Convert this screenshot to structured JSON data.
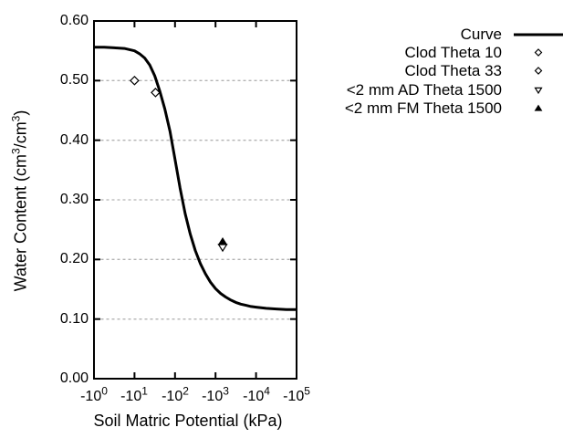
{
  "chart_data": {
    "type": "line",
    "title": "",
    "background_color": "#ffffff",
    "colors": {
      "line": "#000000",
      "grid": "#b3b3b3",
      "text": "#000000"
    },
    "x_axis": {
      "label": "Soil Matric Potential (kPa)",
      "scale": "log10 of negative kPa",
      "range_decades": [
        0,
        5
      ],
      "ticks": [
        {
          "base": "-10",
          "exp": "0"
        },
        {
          "base": "-10",
          "exp": "1"
        },
        {
          "base": "-10",
          "exp": "2"
        },
        {
          "base": "-10",
          "exp": "3"
        },
        {
          "base": "-10",
          "exp": "4"
        },
        {
          "base": "-10",
          "exp": "5"
        }
      ]
    },
    "y_axis": {
      "label_parts": [
        "Water Content (cm",
        "3",
        "/cm",
        "3",
        ")"
      ],
      "range": [
        0.0,
        0.6
      ],
      "ticks": [
        "0.60",
        "0.50",
        "0.40",
        "0.30",
        "0.20",
        "0.10",
        "0.00"
      ],
      "gridlines": [
        0.5,
        0.4,
        0.3,
        0.2,
        0.1
      ],
      "grid_style": "dashed"
    },
    "curve": {
      "name": "Curve",
      "points": [
        [
          0.0,
          0.556
        ],
        [
          0.25,
          0.556
        ],
        [
          0.5,
          0.555
        ],
        [
          0.75,
          0.554
        ],
        [
          1.0,
          0.55
        ],
        [
          1.125,
          0.545
        ],
        [
          1.25,
          0.538
        ],
        [
          1.375,
          0.526
        ],
        [
          1.5,
          0.508
        ],
        [
          1.625,
          0.482
        ],
        [
          1.75,
          0.452
        ],
        [
          1.875,
          0.415
        ],
        [
          2.0,
          0.368
        ],
        [
          2.125,
          0.32
        ],
        [
          2.25,
          0.277
        ],
        [
          2.375,
          0.243
        ],
        [
          2.5,
          0.215
        ],
        [
          2.625,
          0.193
        ],
        [
          2.75,
          0.176
        ],
        [
          2.875,
          0.162
        ],
        [
          3.0,
          0.151
        ],
        [
          3.125,
          0.143
        ],
        [
          3.25,
          0.137
        ],
        [
          3.375,
          0.132
        ],
        [
          3.5,
          0.128
        ],
        [
          3.625,
          0.125
        ],
        [
          3.75,
          0.123
        ],
        [
          3.875,
          0.121
        ],
        [
          4.0,
          0.12
        ],
        [
          4.25,
          0.118
        ],
        [
          4.5,
          0.117
        ],
        [
          4.75,
          0.116
        ],
        [
          5.0,
          0.116
        ]
      ]
    },
    "points": [
      {
        "name": "Clod Theta 10",
        "kpa": 10,
        "theta": 0.5,
        "marker": "diamond-open"
      },
      {
        "name": "Clod Theta 33",
        "kpa": 33,
        "theta": 0.48,
        "marker": "diamond-open"
      },
      {
        "name": "<2 mm AD Theta 1500",
        "kpa": 1500,
        "theta": 0.22,
        "marker": "triangle-down-open"
      },
      {
        "name": "<2 mm FM Theta 1500",
        "kpa": 1500,
        "theta": 0.23,
        "marker": "triangle-up-filled"
      }
    ],
    "legend": [
      {
        "label": "Curve",
        "marker": "line"
      },
      {
        "label": "Clod Theta 10",
        "marker": "diamond-open"
      },
      {
        "label": "Clod Theta 33",
        "marker": "diamond-open"
      },
      {
        "label": "<2 mm AD Theta 1500",
        "marker": "triangle-down-open"
      },
      {
        "label": "<2 mm FM Theta 1500",
        "marker": "triangle-up-filled"
      }
    ],
    "legend_position": "top-right-outside"
  }
}
